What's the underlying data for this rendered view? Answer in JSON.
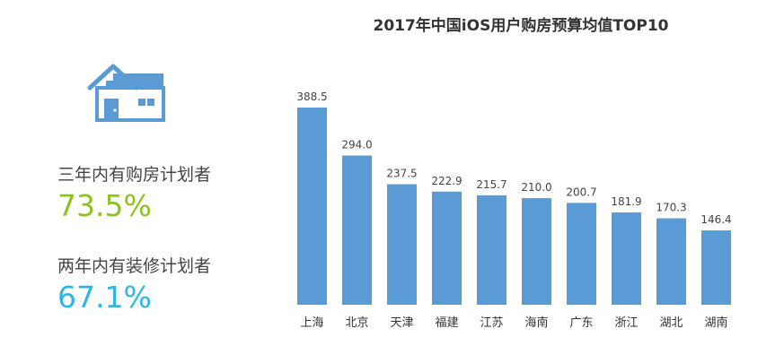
{
  "stats": [
    {
      "label": "三年内有购房计划者",
      "value": "73.5%",
      "color": "#8dc21f"
    },
    {
      "label": "两年内有装修计划者",
      "value": "67.1%",
      "color": "#2bb6e8"
    }
  ],
  "icon": "house-icon",
  "chart_data": {
    "type": "bar",
    "title": "2017年中国iOS用户购房预算均值TOP10",
    "xlabel": "",
    "ylabel": "",
    "categories": [
      "上海",
      "北京",
      "天津",
      "福建",
      "江苏",
      "海南",
      "广东",
      "浙江",
      "湖北",
      "湖南"
    ],
    "values": [
      388.5,
      294.0,
      237.5,
      222.9,
      215.7,
      210.0,
      200.7,
      181.9,
      170.3,
      146.4
    ],
    "value_labels": [
      "388.5",
      "294.0",
      "237.5",
      "222.9",
      "215.7",
      "210.0",
      "200.7",
      "181.9",
      "170.3",
      "146.4"
    ],
    "ylim": [
      0,
      388.5
    ],
    "bar_color": "#5b9bd5",
    "grid": false,
    "legend": "none"
  }
}
